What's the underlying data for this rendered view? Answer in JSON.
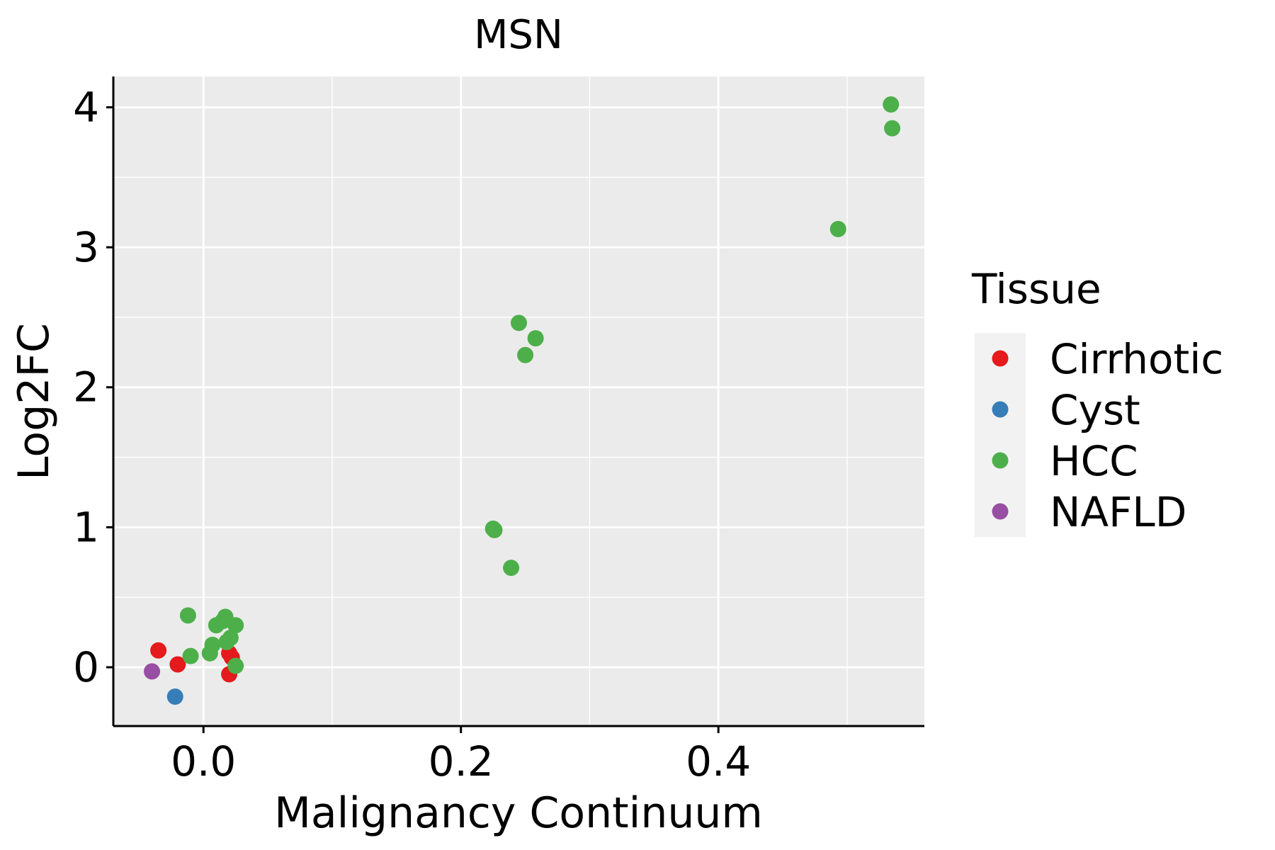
{
  "chart_data": {
    "type": "scatter",
    "title": "MSN",
    "xlabel": "Malignancy Continuum",
    "ylabel": "Log2FC",
    "xlim": [
      -0.07,
      0.56
    ],
    "ylim": [
      -0.42,
      4.22
    ],
    "x_ticks": [
      0.0,
      0.2,
      0.4
    ],
    "x_tick_labels": [
      "0.0",
      "0.2",
      "0.4"
    ],
    "y_ticks": [
      0,
      1,
      2,
      3,
      4
    ],
    "y_tick_labels": [
      "0",
      "1",
      "2",
      "3",
      "4"
    ],
    "grid": true,
    "legend": {
      "title": "Tissue",
      "position": "right"
    },
    "series": [
      {
        "name": "Cirrhotic",
        "color": "#E41A1C",
        "points": [
          {
            "x": -0.035,
            "y": 0.12
          },
          {
            "x": -0.02,
            "y": 0.02
          },
          {
            "x": 0.02,
            "y": 0.1
          },
          {
            "x": 0.022,
            "y": 0.07
          },
          {
            "x": 0.02,
            "y": -0.05
          }
        ]
      },
      {
        "name": "Cyst",
        "color": "#377EB8",
        "points": [
          {
            "x": -0.022,
            "y": -0.21
          }
        ]
      },
      {
        "name": "HCC",
        "color": "#4DAF4A",
        "points": [
          {
            "x": -0.012,
            "y": 0.37
          },
          {
            "x": -0.01,
            "y": 0.08
          },
          {
            "x": 0.005,
            "y": 0.1
          },
          {
            "x": 0.007,
            "y": 0.16
          },
          {
            "x": 0.01,
            "y": 0.3
          },
          {
            "x": 0.015,
            "y": 0.33
          },
          {
            "x": 0.017,
            "y": 0.36
          },
          {
            "x": 0.018,
            "y": 0.18
          },
          {
            "x": 0.021,
            "y": 0.21
          },
          {
            "x": 0.025,
            "y": 0.3
          },
          {
            "x": 0.025,
            "y": 0.01
          },
          {
            "x": 0.225,
            "y": 0.99
          },
          {
            "x": 0.226,
            "y": 0.98
          },
          {
            "x": 0.239,
            "y": 0.71
          },
          {
            "x": 0.245,
            "y": 2.46
          },
          {
            "x": 0.25,
            "y": 2.23
          },
          {
            "x": 0.258,
            "y": 2.35
          },
          {
            "x": 0.493,
            "y": 3.13
          },
          {
            "x": 0.534,
            "y": 4.02
          },
          {
            "x": 0.535,
            "y": 3.85
          }
        ]
      },
      {
        "name": "NAFLD",
        "color": "#984EA3",
        "points": [
          {
            "x": -0.04,
            "y": -0.03
          }
        ]
      }
    ]
  },
  "colors": {
    "panel_bg": "#EBEBEB",
    "grid": "#FFFFFF",
    "legend_key_bg": "#F2F2F2",
    "axis": "#000000"
  }
}
